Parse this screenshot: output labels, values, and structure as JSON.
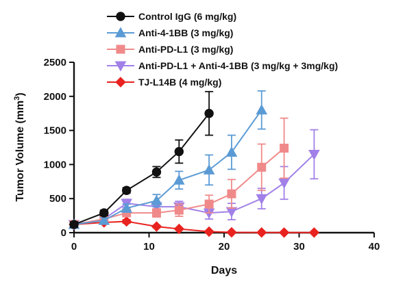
{
  "chart_data": {
    "type": "line",
    "title": "",
    "xlabel": "Days",
    "ylabel": "Tumor Volume (mm",
    "ylabel_superscript": "3",
    "ylabel_close": ")",
    "xlim": [
      0,
      40
    ],
    "ylim": [
      0,
      2500
    ],
    "xticks": [
      0,
      10,
      20,
      30,
      40
    ],
    "yticks": [
      0,
      500,
      1000,
      1500,
      2000,
      2500
    ],
    "grid": false,
    "legend_position": "top",
    "series": [
      {
        "name": "Control IgG (6 mg/kg)",
        "color": "#111111",
        "marker": "circle",
        "x": [
          0,
          4,
          7,
          11,
          14,
          18
        ],
        "y": [
          120,
          290,
          620,
          890,
          1190,
          1750
        ],
        "err": [
          40,
          40,
          40,
          80,
          170,
          320
        ]
      },
      {
        "name": "Anti-4-1BB (3 mg/kg)",
        "color": "#5b9bd5",
        "marker": "triangle-up",
        "x": [
          0,
          4,
          7,
          11,
          14,
          18,
          21,
          25
        ],
        "y": [
          120,
          180,
          360,
          470,
          770,
          920,
          1180,
          1800
        ],
        "err": [
          40,
          40,
          60,
          90,
          130,
          220,
          250,
          280
        ]
      },
      {
        "name": "Anti-PD-L1 (3 mg/kg)",
        "color": "#f08a8a",
        "marker": "square",
        "x": [
          0,
          4,
          7,
          11,
          14,
          18,
          21,
          25,
          28
        ],
        "y": [
          120,
          200,
          290,
          290,
          330,
          420,
          570,
          960,
          1240
        ],
        "err": [
          40,
          40,
          50,
          60,
          90,
          130,
          210,
          340,
          440
        ]
      },
      {
        "name": "Anti-PD-L1 + Anti-4-1BB (3 mg/kg + 3mg/kg)",
        "color": "#a180e8",
        "marker": "triangle-down",
        "x": [
          0,
          4,
          7,
          11,
          14,
          18,
          21,
          25,
          28,
          32
        ],
        "y": [
          120,
          200,
          430,
          380,
          380,
          290,
          310,
          500,
          730,
          1150
        ],
        "err": [
          40,
          40,
          60,
          70,
          80,
          90,
          120,
          150,
          240,
          360
        ]
      },
      {
        "name": "TJ-L14B (4 mg/kg)",
        "color": "#e8231f",
        "marker": "diamond",
        "x": [
          0,
          4,
          7,
          11,
          14,
          18,
          21,
          25,
          28,
          32
        ],
        "y": [
          120,
          150,
          165,
          90,
          55,
          15,
          5,
          3,
          2,
          2
        ],
        "err": [
          30,
          25,
          25,
          15,
          10,
          5,
          3,
          2,
          2,
          2
        ]
      }
    ]
  }
}
